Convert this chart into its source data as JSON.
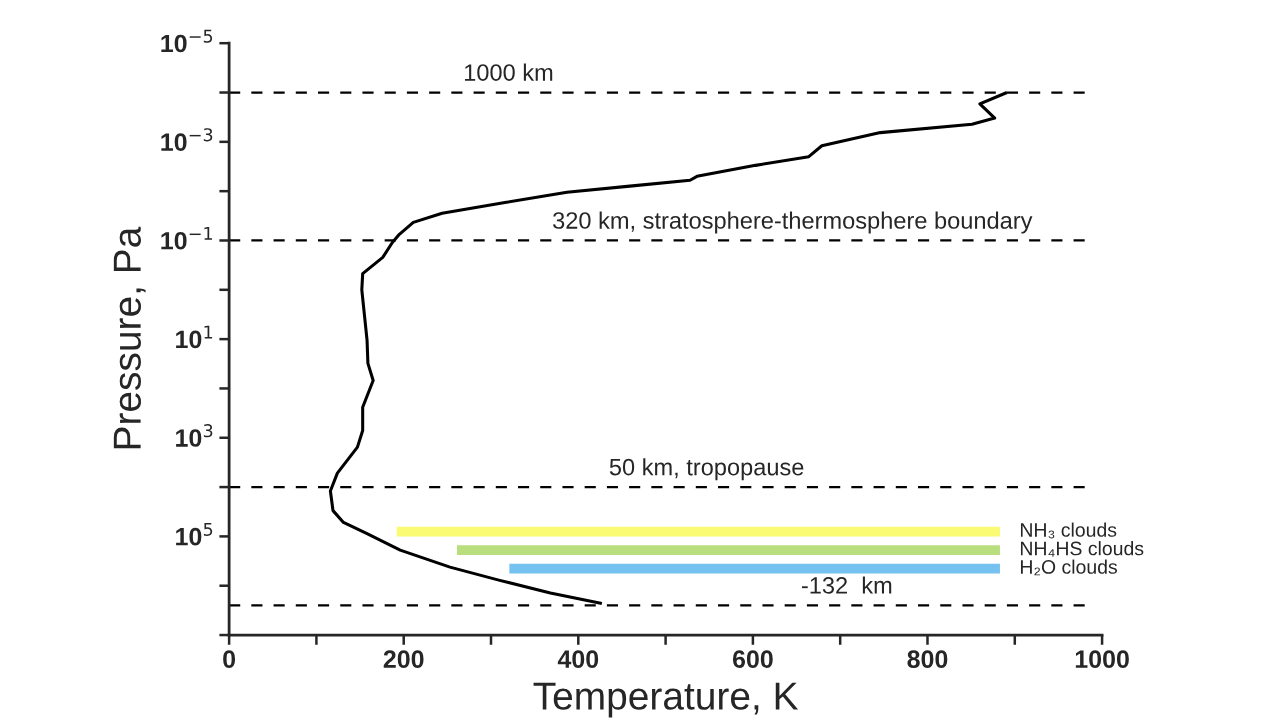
{
  "chart_data": {
    "type": "line",
    "xlabel": "Temperature, K",
    "ylabel": "Pressure, Pa",
    "log": "y",
    "xlim": [
      0,
      1000
    ],
    "xticks": [
      0,
      {
        "value": 100,
        "label": null
      },
      200,
      {
        "value": 300,
        "label": null
      },
      400,
      {
        "value": 500,
        "label": null
      },
      600,
      {
        "value": 700,
        "label": null
      },
      800,
      {
        "value": 900,
        "label": null
      },
      1000
    ],
    "ylim": [
      10000000,
      1e-05
    ],
    "yticks": [
      {
        "value": 1e-05,
        "label": "10$^{−5}$"
      },
      {
        "value": 0.0001,
        "label": null
      },
      {
        "value": 0.001,
        "label": "10$^{−3}$"
      },
      {
        "value": 0.01,
        "label": null
      },
      {
        "value": 0.1,
        "label": "10$^{−1}$"
      },
      {
        "value": 1,
        "label": null
      },
      {
        "value": 10,
        "label": "10$^{1}$"
      },
      {
        "value": 100,
        "label": null
      },
      {
        "value": 1000,
        "label": "10$^{3}$"
      },
      {
        "value": 10000,
        "label": null
      },
      {
        "value": 100000,
        "label": "10$^{5}$"
      },
      {
        "value": 1000000,
        "label": null
      },
      {
        "value": 10000000,
        "label": null
      }
    ],
    "grid": false,
    "legend": false,
    "series": [
      {
        "color": "#000000",
        "x": [
          891,
          860,
          877,
          851,
          746,
          679,
          664,
          603,
          536,
          528,
          459,
          387,
          316,
          244,
          211,
          195,
          187,
          176,
          153,
          152,
          158,
          159,
          165,
          153,
          153,
          147,
          124,
          116,
          119,
          131,
          158,
          196,
          253,
          310,
          368,
          427
        ],
        "values": [
          0.0001,
          0.00017,
          0.00033,
          0.00044,
          0.00065,
          0.0012,
          0.002,
          0.003,
          0.005,
          0.006,
          0.0079,
          0.0105,
          0.017,
          0.028,
          0.043,
          0.075,
          0.11,
          0.22,
          0.47,
          1.0,
          10.5,
          31,
          69,
          240,
          710,
          1550,
          5200,
          12000,
          30000,
          52000,
          88000,
          190000,
          420000,
          780000,
          1400000,
          2300000
        ]
      },
      {
        "name": "NH₃ clouds",
        "color": "#fafa73",
        "x": [
          192,
          883
        ],
        "values": [
          80000,
          80000
        ]
      },
      {
        "name": "NH₄HS clouds",
        "color": "#b8de7e",
        "x": [
          261,
          883
        ],
        "values": [
          190000,
          190000
        ]
      },
      {
        "name": "H₂O clouds",
        "color": "#75c2f0",
        "x": [
          321,
          883
        ],
        "values": [
          450000,
          450000
        ]
      }
    ],
    "ref_lines": [
      {
        "axis": "y",
        "value": 0.0001,
        "label": "1000 km",
        "line_style": "dashed",
        "color": "#000000"
      },
      {
        "axis": "y",
        "value": 0.1,
        "label": "320 km, stratosphere-thermosphere boundary",
        "line_style": "dashed",
        "color": "#000000"
      },
      {
        "axis": "y",
        "value": 10000,
        "label": "50 km, tropopause",
        "line_style": "dashed",
        "color": "#000000"
      },
      {
        "axis": "y",
        "value": 2500000,
        "label": "-132  km",
        "line_style": "dashed",
        "color": "#000000"
      }
    ]
  }
}
